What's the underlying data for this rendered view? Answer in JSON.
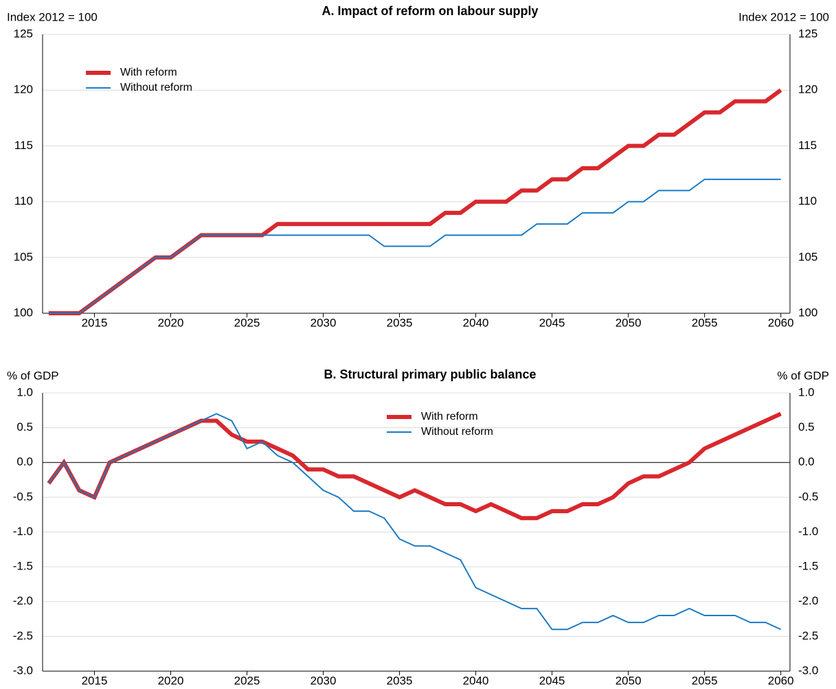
{
  "chart_data": [
    {
      "type": "line",
      "title": "A. Impact of reform on labour supply",
      "ylabel": "Index 2012 = 100",
      "y2label": "Index 2012 = 100",
      "x": [
        2012,
        2013,
        2014,
        2015,
        2016,
        2017,
        2018,
        2019,
        2020,
        2021,
        2022,
        2023,
        2024,
        2025,
        2026,
        2027,
        2028,
        2029,
        2030,
        2031,
        2032,
        2033,
        2034,
        2035,
        2036,
        2037,
        2038,
        2039,
        2040,
        2041,
        2042,
        2043,
        2044,
        2045,
        2046,
        2047,
        2048,
        2049,
        2050,
        2051,
        2052,
        2053,
        2054,
        2055,
        2056,
        2057,
        2058,
        2059,
        2060
      ],
      "xlim": [
        2011.6,
        2060.6
      ],
      "xticks": [
        2015,
        2020,
        2025,
        2030,
        2035,
        2040,
        2045,
        2050,
        2055,
        2060
      ],
      "ylim": [
        100,
        125
      ],
      "yticks": [
        100,
        105,
        110,
        115,
        120,
        125
      ],
      "grid": true,
      "legend_position": "upper left",
      "series": [
        {
          "name": "With reform",
          "color": "#d8282e",
          "width": 6,
          "values": [
            100,
            100,
            100,
            101,
            102,
            103,
            104,
            105,
            105,
            106,
            107,
            107,
            107,
            107,
            107,
            108,
            108,
            108,
            108,
            108,
            108,
            108,
            108,
            108,
            108,
            108,
            109,
            109,
            110,
            110,
            110,
            111,
            111,
            112,
            112,
            113,
            113,
            114,
            115,
            115,
            116,
            116,
            117,
            118,
            118,
            119,
            119,
            119,
            120
          ]
        },
        {
          "name": "Without reform",
          "color": "#1a7bc3",
          "width": 2,
          "values": [
            100,
            100,
            100,
            101,
            102,
            103,
            104,
            105,
            105,
            106,
            107,
            107,
            107,
            107,
            107,
            107,
            107,
            107,
            107,
            107,
            107,
            107,
            106,
            106,
            106,
            106,
            107,
            107,
            107,
            107,
            107,
            107,
            108,
            108,
            108,
            109,
            109,
            109,
            110,
            110,
            111,
            111,
            111,
            112,
            112,
            112,
            112,
            112,
            112
          ]
        }
      ]
    },
    {
      "type": "line",
      "title": "B. Structural primary public balance",
      "ylabel": "% of GDP",
      "y2label": "% of GDP",
      "x": [
        2012,
        2013,
        2014,
        2015,
        2016,
        2017,
        2018,
        2019,
        2020,
        2021,
        2022,
        2023,
        2024,
        2025,
        2026,
        2027,
        2028,
        2029,
        2030,
        2031,
        2032,
        2033,
        2034,
        2035,
        2036,
        2037,
        2038,
        2039,
        2040,
        2041,
        2042,
        2043,
        2044,
        2045,
        2046,
        2047,
        2048,
        2049,
        2050,
        2051,
        2052,
        2053,
        2054,
        2055,
        2056,
        2057,
        2058,
        2059,
        2060
      ],
      "xlim": [
        2011.6,
        2060.6
      ],
      "xticks": [
        2015,
        2020,
        2025,
        2030,
        2035,
        2040,
        2045,
        2050,
        2055,
        2060
      ],
      "ylim": [
        -3,
        1
      ],
      "yticks": [
        {
          "value": -3,
          "label": "-3.0"
        },
        -2.5,
        {
          "value": -2,
          "label": "-2.0"
        },
        -1.5,
        {
          "value": -1,
          "label": "-1.0"
        },
        -0.5,
        {
          "value": 0,
          "label": "0.0"
        },
        0.5,
        {
          "value": 1,
          "label": "1.0"
        }
      ],
      "grid": true,
      "zero_line": true,
      "legend_position": "upper center",
      "series": [
        {
          "name": "With reform",
          "color": "#d8282e",
          "width": 6,
          "values": [
            -0.3,
            0.0,
            -0.4,
            -0.5,
            0.0,
            0.1,
            0.2,
            0.3,
            0.4,
            0.5,
            0.6,
            0.6,
            0.4,
            0.3,
            0.3,
            0.2,
            0.1,
            -0.1,
            -0.1,
            -0.2,
            -0.2,
            -0.3,
            -0.4,
            -0.5,
            -0.4,
            -0.5,
            -0.6,
            -0.6,
            -0.7,
            -0.6,
            -0.7,
            -0.8,
            -0.8,
            -0.7,
            -0.7,
            -0.6,
            -0.6,
            -0.5,
            -0.3,
            -0.2,
            -0.2,
            -0.1,
            0.0,
            0.2,
            0.3,
            0.4,
            0.5,
            0.6,
            0.7
          ]
        },
        {
          "name": "Without reform",
          "color": "#1a7bc3",
          "width": 2,
          "values": [
            -0.3,
            0.0,
            -0.4,
            -0.5,
            0.0,
            0.1,
            0.2,
            0.3,
            0.4,
            0.5,
            0.6,
            0.7,
            0.6,
            0.2,
            0.3,
            0.1,
            0.0,
            -0.2,
            -0.4,
            -0.5,
            -0.7,
            -0.7,
            -0.8,
            -1.1,
            -1.2,
            -1.2,
            -1.3,
            -1.4,
            -1.8,
            -1.9,
            -2.0,
            -2.1,
            -2.1,
            -2.4,
            -2.4,
            -2.3,
            -2.3,
            -2.2,
            -2.3,
            -2.3,
            -2.2,
            -2.2,
            -2.1,
            -2.2,
            -2.2,
            -2.2,
            -2.3,
            -2.3,
            -2.4
          ]
        }
      ]
    }
  ]
}
